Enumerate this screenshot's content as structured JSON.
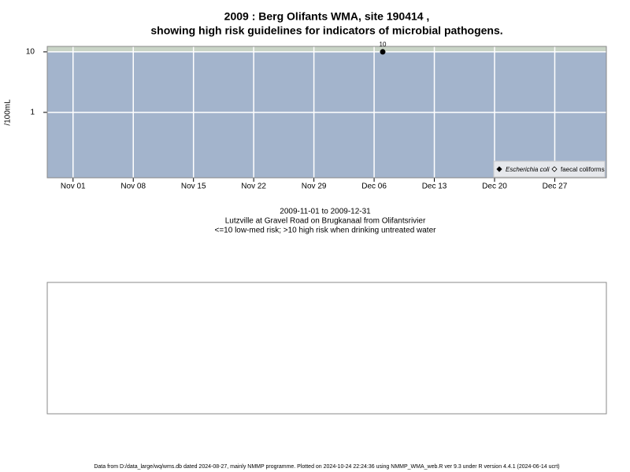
{
  "chart_data": {
    "type": "scatter",
    "title": [
      "2009 : Berg Olifants WMA, site 190414 ,",
      "showing high risk guidelines for indicators of microbial pathogens."
    ],
    "ylabel": "/100mL",
    "subtitle": [
      "2009-11-01 to 2009-12-31",
      "Lutzville at Gravel Road on Brugkanaal from Olifantsrivier",
      "<=10 low-med risk; >10 high risk when drinking untreated water"
    ],
    "footnote": "Data from D:/data_large/wq/wms.db dated 2024-08-27, mainly NMMP programme. Plotted on 2024-10-24 22:24:36 using NMMP_WMA_web.R ver 9.3 under R version 4.4.1 (2024-06-14 ucrt)",
    "x": [
      "2009-12-07"
    ],
    "series": [
      {
        "name": "Escherichia coli",
        "color": "#000000",
        "values": [
          10
        ],
        "value_labels": [
          "10"
        ]
      },
      {
        "name": "faecal coliforms",
        "color": "#000000",
        "values": [
          null
        ]
      }
    ],
    "xlim": [
      "2009-10-29",
      "2010-01-02"
    ],
    "xticks": [
      {
        "value": "2009-11-01",
        "label": "Nov 01"
      },
      {
        "value": "2009-11-08",
        "label": "Nov 08"
      },
      {
        "value": "2009-11-15",
        "label": "Nov 15"
      },
      {
        "value": "2009-11-22",
        "label": "Nov 22"
      },
      {
        "value": "2009-11-29",
        "label": "Nov 29"
      },
      {
        "value": "2009-12-06",
        "label": "Dec 06"
      },
      {
        "value": "2009-12-13",
        "label": "Dec 13"
      },
      {
        "value": "2009-12-20",
        "label": "Dec 20"
      },
      {
        "value": "2009-12-27",
        "label": "Dec 27"
      }
    ],
    "ylim": [
      0.083,
      12.3
    ],
    "yticks": [
      1,
      10
    ],
    "log_y": true,
    "grid": true,
    "risk_threshold": 10,
    "low_risk_color": "#a3b4cc",
    "high_risk_color": "#c9d4c6",
    "legend": "bottom-right"
  }
}
